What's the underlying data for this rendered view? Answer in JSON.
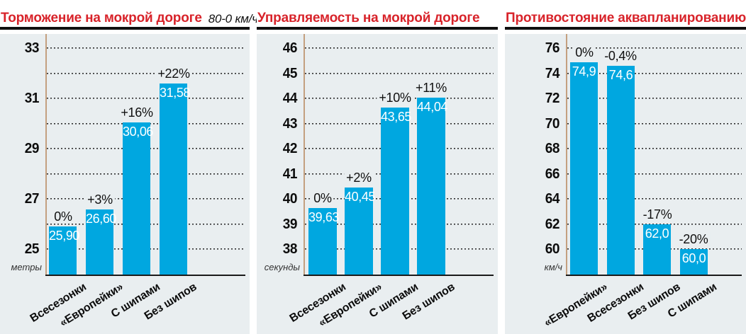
{
  "colors": {
    "bar": "#00a7e0",
    "panel_bg": "#e9eef0",
    "title_red": "#d8232a",
    "axis_line": "#c4a080",
    "baseline": "#1a1a1a",
    "grid": "#2f2f2f",
    "value_text": "#ffffff",
    "pct_text": "#101010"
  },
  "chart_data": [
    {
      "type": "bar",
      "title": "Торможение на мокрой дороге",
      "subtitle": "80-0 км/ч",
      "ylabel_unit": "метры",
      "categories": [
        "Всесезонки",
        "«Европейки»",
        "С шипами",
        "Без шипов"
      ],
      "values": [
        25.9,
        26.6,
        30.06,
        31.58
      ],
      "value_labels": [
        "25,90",
        "26,60",
        "30,06",
        "31,58"
      ],
      "pct_labels": [
        "0%",
        "+3%",
        "+16%",
        "+22%"
      ],
      "ylim": [
        24,
        33
      ],
      "grid_step": 1,
      "label_every": 2,
      "grid": "dotted",
      "legend": "none"
    },
    {
      "type": "bar",
      "title": "Управляемость на мокрой дороге",
      "subtitle": "",
      "ylabel_unit": "секунды",
      "categories": [
        "Всесезонки",
        "«Европейки»",
        "С шипами",
        "Без шипов"
      ],
      "values": [
        39.63,
        40.45,
        43.65,
        44.04
      ],
      "value_labels": [
        "39,63",
        "40,45",
        "43,65",
        "44,04"
      ],
      "pct_labels": [
        "0%",
        "+2%",
        "+10%",
        "+11%"
      ],
      "ylim": [
        37,
        46
      ],
      "grid_step": 1,
      "label_every": 1,
      "grid": "dotted",
      "legend": "none"
    },
    {
      "type": "bar",
      "title": "Противостояние аквапланированию",
      "subtitle": "",
      "ylabel_unit": "км/ч",
      "categories": [
        "«Европейки»",
        "Всесезонки",
        "Без шипов",
        "С шипами"
      ],
      "values": [
        74.9,
        74.6,
        62.0,
        60.0
      ],
      "value_labels": [
        "74,9",
        "74,6",
        "62,0",
        "60,0"
      ],
      "pct_labels": [
        "0%",
        "-0,4%",
        "-17%",
        "-20%"
      ],
      "ylim": [
        58,
        76
      ],
      "grid_step": 2,
      "label_every": 1,
      "grid": "dotted",
      "legend": "none"
    }
  ]
}
